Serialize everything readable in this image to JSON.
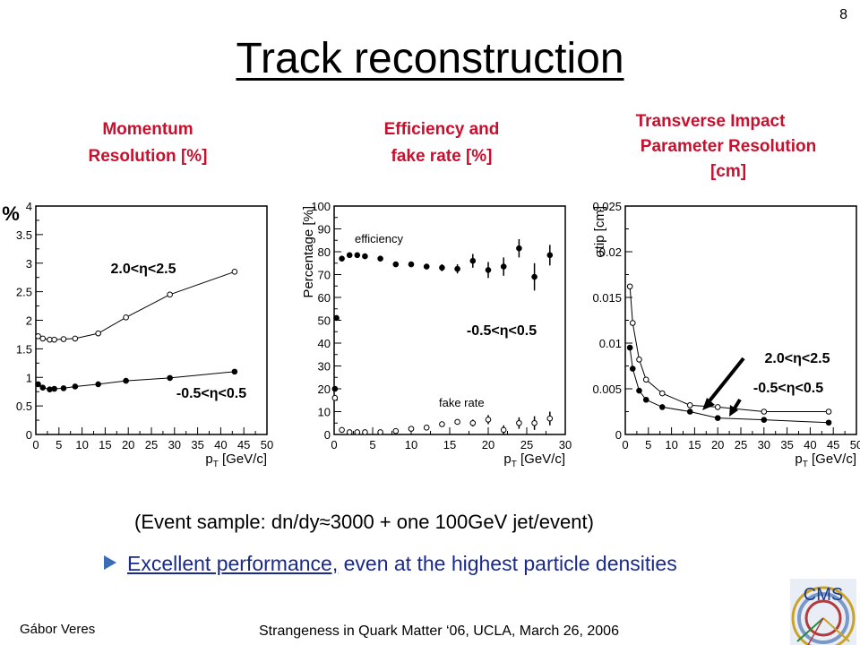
{
  "slide": {
    "page_number": "8",
    "title": "Track reconstruction",
    "panel_labels": {
      "momentum": [
        "Momentum",
        "Resolution [%]"
      ],
      "efficiency": [
        "Efficiency and",
        "fake rate [%]"
      ],
      "impact": [
        "Transverse Impact",
        "Parameter Resolution",
        "[cm]"
      ]
    },
    "caption": "(Event sample: dn/dy≈3000 + one 100GeV jet/event)",
    "bullet": {
      "link_text": "Excellent performance,",
      "rest_text": " even at the highest particle densities"
    },
    "author": "Gábor Veres",
    "footer": "Strangeness in Quark Matter ‘06, UCLA, March 26, 2006",
    "logo_text": "CMS",
    "colors": {
      "label_red": "#c8102e",
      "bullet_blue": "#1a2a8a",
      "bullet_marker": "#3a6db5"
    }
  },
  "chart_data": [
    {
      "type": "line",
      "panel": "Momentum Resolution [%]",
      "ylabel": "%",
      "xlabel": "pT [GeV/c]",
      "xlim": [
        0,
        50
      ],
      "ylim": [
        0,
        4
      ],
      "xticks": [
        "0",
        "5",
        "10",
        "15",
        "20",
        "25",
        "30",
        "35",
        "40",
        "45",
        "50"
      ],
      "yticks": [
        "0",
        "0.5",
        "1",
        "1.5",
        "2",
        "2.5",
        "3",
        "3.5",
        "4"
      ],
      "series": [
        {
          "name": "2.0<η<2.5",
          "marker": "open",
          "x": [
            0.5,
            1.5,
            3,
            4,
            6,
            8.5,
            13.5,
            19.5,
            29,
            43
          ],
          "y": [
            1.72,
            1.68,
            1.66,
            1.66,
            1.67,
            1.68,
            1.77,
            2.05,
            2.45,
            2.85
          ]
        },
        {
          "name": "-0.5<η<0.5",
          "marker": "filled",
          "x": [
            0.5,
            1.5,
            3,
            4,
            6,
            8.5,
            13.5,
            19.5,
            29,
            43
          ],
          "y": [
            0.88,
            0.82,
            0.79,
            0.8,
            0.81,
            0.84,
            0.88,
            0.94,
            0.99,
            1.1
          ]
        }
      ]
    },
    {
      "type": "scatter",
      "panel": "Efficiency and fake rate [%]",
      "ylabel": "Percentage [%]",
      "xlabel": "pT [GeV/c]",
      "xlim": [
        0,
        30
      ],
      "ylim": [
        0,
        100
      ],
      "xticks": [
        "0",
        "5",
        "10",
        "15",
        "20",
        "25",
        "30"
      ],
      "yticks": [
        "0",
        "10",
        "20",
        "30",
        "40",
        "50",
        "60",
        "70",
        "80",
        "90",
        "100"
      ],
      "annotations": [
        "efficiency",
        "fake rate",
        "-0.5<η<0.5"
      ],
      "series": [
        {
          "name": "efficiency",
          "marker": "filled",
          "x": [
            0.1,
            0.3,
            1,
            2,
            3,
            4,
            6,
            8,
            10,
            12,
            14,
            16,
            18,
            20,
            22,
            24,
            26,
            28
          ],
          "y": [
            20,
            51,
            77,
            78.5,
            78.5,
            78,
            77,
            74.5,
            74.5,
            73.5,
            73,
            72.5,
            76,
            72,
            73.5,
            81.5,
            69,
            78.5
          ],
          "err": [
            0,
            0,
            0,
            0,
            0,
            0,
            0,
            0,
            0,
            1,
            1.5,
            2,
            3,
            3.5,
            4,
            4,
            6,
            4.5
          ]
        },
        {
          "name": "fake rate",
          "marker": "open",
          "x": [
            0.1,
            1,
            2,
            3,
            4,
            6,
            8,
            10,
            12,
            14,
            16,
            18,
            20,
            22,
            24,
            26,
            28
          ],
          "y": [
            16,
            2,
            1,
            1,
            1,
            1,
            1.5,
            2.5,
            3,
            4.5,
            5.5,
            5,
            6.5,
            2,
            5,
            5,
            7
          ],
          "err": [
            0,
            0,
            0,
            0,
            0,
            0,
            0,
            0.5,
            0.5,
            1,
            1,
            1.5,
            2,
            2,
            2.5,
            3,
            3
          ]
        }
      ]
    },
    {
      "type": "line",
      "panel": "Transverse Impact Parameter Resolution [cm]",
      "ylabel": "σtip [cm]",
      "xlabel": "pT [GeV/c]",
      "xlim": [
        0,
        50
      ],
      "ylim": [
        0,
        0.025
      ],
      "xticks": [
        "0",
        "5",
        "10",
        "15",
        "20",
        "25",
        "30",
        "35",
        "40",
        "45",
        "50"
      ],
      "yticks": [
        "0",
        "0.005",
        "0.01",
        "0.015",
        "0.02",
        "0.025"
      ],
      "series": [
        {
          "name": "2.0<η<2.5",
          "marker": "open",
          "x": [
            1,
            1.6,
            3,
            4.5,
            8,
            14,
            20,
            30,
            44
          ],
          "y": [
            0.0162,
            0.0122,
            0.0082,
            0.006,
            0.0045,
            0.0032,
            0.003,
            0.0025,
            0.0025
          ]
        },
        {
          "name": "-0.5<η<0.5",
          "marker": "filled",
          "x": [
            1,
            1.6,
            3,
            4.5,
            8,
            14,
            20,
            30,
            44
          ],
          "y": [
            0.0095,
            0.0072,
            0.0048,
            0.0038,
            0.003,
            0.0025,
            0.0018,
            0.0016,
            0.0013
          ]
        }
      ]
    }
  ]
}
